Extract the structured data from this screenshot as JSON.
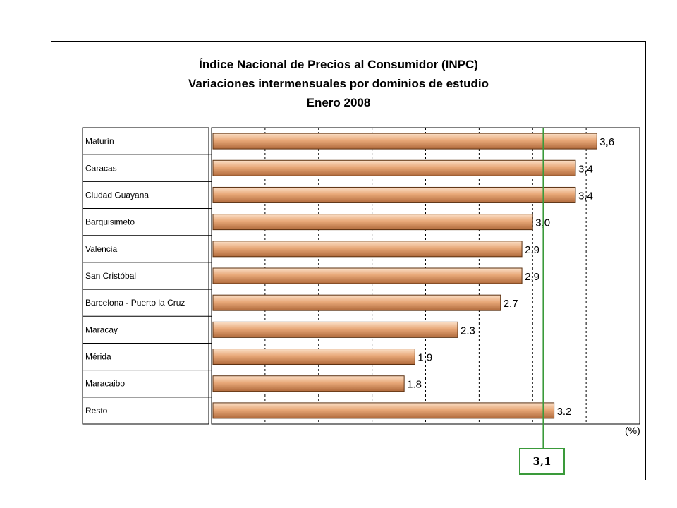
{
  "chart_data": {
    "type": "bar",
    "orientation": "horizontal",
    "title": "Índice Nacional de Precios al Consumidor (INPC)",
    "subtitle": "Variaciones intermensuales por dominios de estudio",
    "period": "Enero 2008",
    "categories": [
      "Maturín",
      "Caracas",
      "Ciudad Guayana",
      "Barquisimeto",
      "Valencia",
      "San Cristóbal",
      "Barcelona - Puerto la Cruz",
      "Maracay",
      "Mérida",
      "Maracaibo",
      "Resto"
    ],
    "values": [
      3.6,
      3.4,
      3.4,
      3.0,
      2.9,
      2.9,
      2.7,
      2.3,
      1.9,
      1.8,
      3.2
    ],
    "value_labels": [
      "3,6",
      "3,4",
      "3,4",
      "3,0",
      "2,9",
      "2,9",
      "2.7",
      "2.3",
      "1,9",
      "1.8",
      "3.2"
    ],
    "xlim": [
      0,
      4
    ],
    "x_unit_label": "(%)",
    "reference_line": {
      "value": 3.1,
      "label": "3,1",
      "color": "#3a9a3a"
    },
    "bar_color": "#e8a878",
    "gridlines": "vertical-dashed",
    "legend": "none"
  }
}
